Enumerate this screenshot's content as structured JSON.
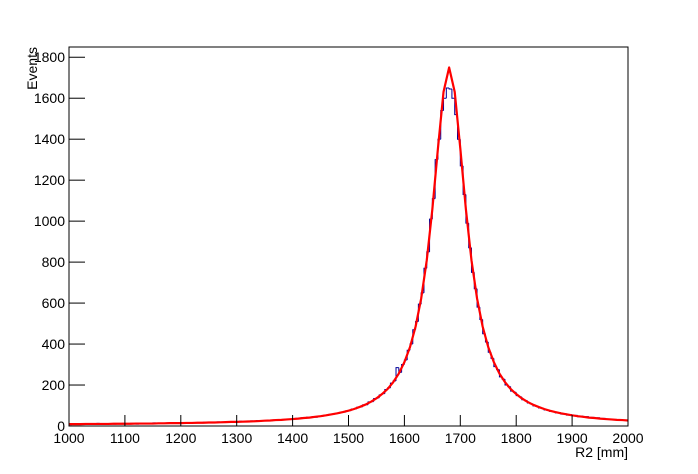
{
  "chart_data": {
    "type": "histogram",
    "x_label": "R2 [mm]",
    "y_label": "Events",
    "color": "#000099",
    "bins": [
      1000,
      1005,
      1010,
      1015,
      1020,
      1025,
      1030,
      1035,
      1040,
      1045,
      1050,
      1055,
      1060,
      1065,
      1070,
      1075,
      1080,
      1085,
      1090,
      1095,
      1100,
      1105,
      1110,
      1115,
      1120,
      1125,
      1130,
      1135,
      1140,
      1145,
      1150,
      1155,
      1160,
      1165,
      1170,
      1175,
      1180,
      1185,
      1190,
      1195,
      1200,
      1205,
      1210,
      1215,
      1220,
      1225,
      1230,
      1235,
      1240,
      1245,
      1250,
      1255,
      1260,
      1265,
      1270,
      1275,
      1280,
      1285,
      1290,
      1295,
      1300,
      1305,
      1310,
      1315,
      1320,
      1325,
      1330,
      1335,
      1340,
      1345,
      1350,
      1355,
      1360,
      1365,
      1370,
      1375,
      1380,
      1385,
      1390,
      1395,
      1400,
      1405,
      1410,
      1415,
      1420,
      1425,
      1430,
      1435,
      1440,
      1445,
      1450,
      1455,
      1460,
      1465,
      1470,
      1475,
      1480,
      1485,
      1490,
      1495,
      1500,
      1505,
      1510,
      1515,
      1520,
      1525,
      1530,
      1535,
      1540,
      1545,
      1550,
      1555,
      1560,
      1565,
      1570,
      1575,
      1580,
      1585,
      1590,
      1595,
      1600,
      1605,
      1610,
      1615,
      1620,
      1625,
      1630,
      1635,
      1640,
      1645,
      1650,
      1655,
      1660,
      1665,
      1670,
      1675,
      1680,
      1685,
      1690,
      1695,
      1700,
      1705,
      1710,
      1715,
      1720,
      1725,
      1730,
      1735,
      1740,
      1745,
      1750,
      1755,
      1760,
      1765,
      1770,
      1775,
      1780,
      1785,
      1790,
      1795,
      1800,
      1805,
      1810,
      1815,
      1820,
      1825,
      1830,
      1835,
      1840,
      1845,
      1850,
      1855,
      1860,
      1865,
      1870,
      1875,
      1880,
      1885,
      1890,
      1895,
      1900,
      1905,
      1910,
      1915,
      1920,
      1925,
      1930,
      1935,
      1940,
      1945,
      1950,
      1955,
      1960,
      1965,
      1970,
      1975,
      1980,
      1985,
      1990,
      1995,
      2000
    ],
    "values": [
      7,
      10,
      8,
      11,
      9,
      12,
      8,
      10,
      11,
      9,
      13,
      10,
      8,
      12,
      10,
      11,
      9,
      12,
      10,
      13,
      11,
      10,
      13,
      12,
      9,
      14,
      12,
      11,
      13,
      12,
      15,
      12,
      14,
      12,
      13,
      15,
      14,
      12,
      16,
      14,
      13,
      16,
      15,
      14,
      17,
      15,
      17,
      16,
      18,
      16,
      19,
      17,
      16,
      20,
      18,
      19,
      21,
      18,
      20,
      22,
      20,
      23,
      21,
      24,
      22,
      25,
      23,
      26,
      24,
      27,
      25,
      28,
      26,
      30,
      29,
      30,
      32,
      29,
      34,
      33,
      34,
      37,
      36,
      40,
      38,
      43,
      41,
      46,
      43,
      49,
      47,
      52,
      51,
      57,
      56,
      61,
      62,
      67,
      68,
      74,
      75,
      83,
      84,
      92,
      93,
      103,
      104,
      118,
      119,
      134,
      137,
      152,
      158,
      178,
      186,
      209,
      220,
      285,
      262,
      300,
      322,
      370,
      400,
      470,
      510,
      595,
      650,
      770,
      850,
      1010,
      1110,
      1300,
      1400,
      1540,
      1600,
      1650,
      1645,
      1600,
      1520,
      1400,
      1270,
      1130,
      990,
      870,
      750,
      670,
      580,
      520,
      450,
      410,
      360,
      330,
      290,
      275,
      240,
      228,
      200,
      192,
      170,
      165,
      148,
      142,
      128,
      124,
      112,
      108,
      98,
      96,
      88,
      86,
      78,
      76,
      71,
      70,
      64,
      65,
      58,
      60,
      53,
      56,
      49,
      52,
      45,
      48,
      43,
      46,
      40,
      42,
      37,
      40,
      35,
      37,
      32,
      34,
      30,
      32,
      29,
      31,
      28,
      27
    ],
    "fit": {
      "type": "line",
      "color": "#ff0000",
      "x": [
        1000,
        1010,
        1020,
        1030,
        1040,
        1050,
        1060,
        1070,
        1080,
        1090,
        1100,
        1110,
        1120,
        1130,
        1140,
        1150,
        1160,
        1170,
        1180,
        1190,
        1200,
        1210,
        1220,
        1230,
        1240,
        1250,
        1260,
        1270,
        1280,
        1290,
        1300,
        1310,
        1320,
        1330,
        1340,
        1350,
        1360,
        1370,
        1380,
        1390,
        1400,
        1410,
        1420,
        1430,
        1440,
        1450,
        1460,
        1470,
        1480,
        1490,
        1500,
        1510,
        1520,
        1530,
        1540,
        1550,
        1560,
        1570,
        1580,
        1590,
        1600,
        1610,
        1620,
        1630,
        1640,
        1650,
        1660,
        1670,
        1680,
        1690,
        1700,
        1710,
        1720,
        1730,
        1740,
        1750,
        1760,
        1770,
        1780,
        1790,
        1800,
        1810,
        1820,
        1830,
        1840,
        1850,
        1860,
        1870,
        1880,
        1890,
        1900,
        1910,
        1920,
        1930,
        1940,
        1950,
        1960,
        1970,
        1980,
        1990,
        2000
      ],
      "values": [
        9,
        9,
        9,
        10,
        10,
        10,
        10,
        10,
        11,
        11,
        11,
        11,
        12,
        12,
        12,
        12,
        13,
        13,
        14,
        14,
        14,
        15,
        15,
        16,
        16,
        17,
        17,
        18,
        19,
        20,
        20,
        21,
        22,
        23,
        24,
        26,
        27,
        29,
        30,
        32,
        34,
        36,
        39,
        41,
        45,
        48,
        52,
        57,
        62,
        68,
        75,
        83,
        93,
        104,
        118,
        135,
        156,
        181,
        214,
        256,
        312,
        385,
        485,
        622,
        809,
        1058,
        1355,
        1631,
        1750,
        1631,
        1355,
        1058,
        809,
        622,
        485,
        385,
        312,
        256,
        214,
        181,
        156,
        135,
        118,
        104,
        93,
        83,
        75,
        68,
        62,
        57,
        52,
        48,
        45,
        41,
        39,
        36,
        34,
        32,
        30,
        29,
        27
      ]
    },
    "xlim": [
      1000,
      2000
    ],
    "ylim": [
      0,
      1850
    ],
    "xticks": [
      1000,
      1100,
      1200,
      1300,
      1400,
      1500,
      1600,
      1700,
      1800,
      1900,
      2000
    ],
    "yticks": [
      0,
      200,
      400,
      600,
      800,
      1000,
      1200,
      1400,
      1600,
      1800
    ]
  }
}
